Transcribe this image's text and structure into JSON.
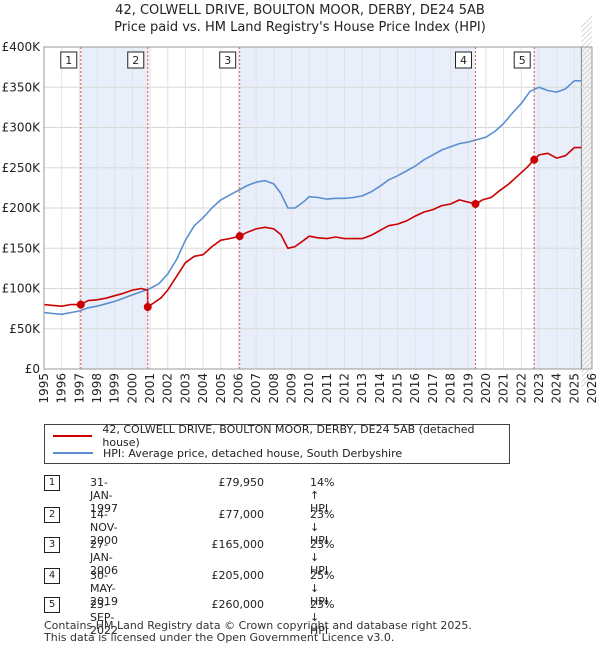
{
  "chart_data": {
    "type": "line",
    "title": "42, COLWELL DRIVE, BOULTON MOOR, DERBY, DE24 5AB",
    "subtitle": "Price paid vs. HM Land Registry's House Price Index (HPI)",
    "xlim": [
      1995,
      2026
    ],
    "ylim": [
      0,
      400000
    ],
    "x_ticks": [
      "1995",
      "1996",
      "1997",
      "1998",
      "1999",
      "2000",
      "2001",
      "2002",
      "2003",
      "2004",
      "2005",
      "2006",
      "2007",
      "2008",
      "2009",
      "2010",
      "2011",
      "2012",
      "2013",
      "2014",
      "2015",
      "2016",
      "2017",
      "2018",
      "2019",
      "2020",
      "2021",
      "2022",
      "2023",
      "2024",
      "2025",
      "2026"
    ],
    "y_ticks": [
      {
        "value": 0,
        "label": "£0"
      },
      {
        "value": 50000,
        "label": "£50K"
      },
      {
        "value": 100000,
        "label": "£100K"
      },
      {
        "value": 150000,
        "label": "£150K"
      },
      {
        "value": 200000,
        "label": "£200K"
      },
      {
        "value": 250000,
        "label": "£250K"
      },
      {
        "value": 300000,
        "label": "£300K"
      },
      {
        "value": 350000,
        "label": "£350K"
      },
      {
        "value": 400000,
        "label": "£400K"
      }
    ],
    "series": [
      {
        "name": "42, COLWELL DRIVE, BOULTON MOOR, DERBY, DE24 5AB (detached house)",
        "color": "#cc0000",
        "points": [
          [
            1995,
            80000
          ],
          [
            1995.5,
            79000
          ],
          [
            1996,
            78000
          ],
          [
            1996.5,
            80000
          ],
          [
            1997.08,
            79950
          ],
          [
            1997.5,
            85000
          ],
          [
            1998,
            86000
          ],
          [
            1998.5,
            88000
          ],
          [
            1999,
            91000
          ],
          [
            1999.5,
            94000
          ],
          [
            2000,
            98000
          ],
          [
            2000.5,
            100000
          ],
          [
            2000.86,
            98000
          ],
          [
            2000.87,
            77000
          ],
          [
            2001.2,
            82000
          ],
          [
            2001.6,
            88000
          ],
          [
            2002,
            98000
          ],
          [
            2002.5,
            115000
          ],
          [
            2003,
            132000
          ],
          [
            2003.5,
            140000
          ],
          [
            2004,
            142000
          ],
          [
            2004.5,
            152000
          ],
          [
            2005,
            160000
          ],
          [
            2005.5,
            162000
          ],
          [
            2006.07,
            165000
          ],
          [
            2006.5,
            170000
          ],
          [
            2007,
            174000
          ],
          [
            2007.5,
            176000
          ],
          [
            2008,
            174000
          ],
          [
            2008.4,
            167000
          ],
          [
            2008.8,
            150000
          ],
          [
            2009.2,
            152000
          ],
          [
            2009.7,
            160000
          ],
          [
            2010,
            165000
          ],
          [
            2010.5,
            163000
          ],
          [
            2011,
            162000
          ],
          [
            2011.5,
            164000
          ],
          [
            2012,
            162000
          ],
          [
            2012.5,
            162000
          ],
          [
            2013,
            162000
          ],
          [
            2013.5,
            166000
          ],
          [
            2014,
            172000
          ],
          [
            2014.5,
            178000
          ],
          [
            2015,
            180000
          ],
          [
            2015.5,
            184000
          ],
          [
            2016,
            190000
          ],
          [
            2016.5,
            195000
          ],
          [
            2017,
            198000
          ],
          [
            2017.5,
            203000
          ],
          [
            2018,
            205000
          ],
          [
            2018.5,
            210000
          ],
          [
            2019.41,
            205000
          ],
          [
            2019.8,
            210000
          ],
          [
            2020.3,
            213000
          ],
          [
            2020.8,
            222000
          ],
          [
            2021.3,
            230000
          ],
          [
            2021.8,
            240000
          ],
          [
            2022.3,
            250000
          ],
          [
            2022.73,
            260000
          ],
          [
            2023,
            266000
          ],
          [
            2023.5,
            268000
          ],
          [
            2024,
            262000
          ],
          [
            2024.5,
            265000
          ],
          [
            2025,
            275000
          ],
          [
            2025.4,
            275000
          ]
        ]
      },
      {
        "name": "HPI: Average price, detached house, South Derbyshire",
        "color": "#5b8fd0",
        "points": [
          [
            1995,
            70000
          ],
          [
            1995.5,
            69000
          ],
          [
            1996,
            68000
          ],
          [
            1996.5,
            70000
          ],
          [
            1997,
            72000
          ],
          [
            1997.5,
            76000
          ],
          [
            1998,
            78000
          ],
          [
            1998.5,
            81000
          ],
          [
            1999,
            84000
          ],
          [
            1999.5,
            88000
          ],
          [
            2000,
            92000
          ],
          [
            2000.5,
            96000
          ],
          [
            2001,
            100000
          ],
          [
            2001.5,
            106000
          ],
          [
            2002,
            118000
          ],
          [
            2002.5,
            136000
          ],
          [
            2003,
            160000
          ],
          [
            2003.5,
            178000
          ],
          [
            2004,
            188000
          ],
          [
            2004.5,
            200000
          ],
          [
            2005,
            210000
          ],
          [
            2005.5,
            216000
          ],
          [
            2006,
            222000
          ],
          [
            2006.5,
            228000
          ],
          [
            2007,
            232000
          ],
          [
            2007.5,
            234000
          ],
          [
            2008,
            230000
          ],
          [
            2008.4,
            218000
          ],
          [
            2008.8,
            200000
          ],
          [
            2009.2,
            200000
          ],
          [
            2009.7,
            208000
          ],
          [
            2010,
            214000
          ],
          [
            2010.5,
            213000
          ],
          [
            2011,
            211000
          ],
          [
            2011.5,
            212000
          ],
          [
            2012,
            212000
          ],
          [
            2012.5,
            213000
          ],
          [
            2013,
            215000
          ],
          [
            2013.5,
            220000
          ],
          [
            2014,
            227000
          ],
          [
            2014.5,
            235000
          ],
          [
            2015,
            240000
          ],
          [
            2015.5,
            246000
          ],
          [
            2016,
            252000
          ],
          [
            2016.5,
            260000
          ],
          [
            2017,
            266000
          ],
          [
            2017.5,
            272000
          ],
          [
            2018,
            276000
          ],
          [
            2018.5,
            280000
          ],
          [
            2019,
            282000
          ],
          [
            2019.5,
            285000
          ],
          [
            2020,
            288000
          ],
          [
            2020.5,
            295000
          ],
          [
            2021,
            305000
          ],
          [
            2021.5,
            318000
          ],
          [
            2022,
            330000
          ],
          [
            2022.5,
            345000
          ],
          [
            2023,
            350000
          ],
          [
            2023.5,
            346000
          ],
          [
            2024,
            344000
          ],
          [
            2024.5,
            348000
          ],
          [
            2025,
            358000
          ],
          [
            2025.4,
            358000
          ]
        ]
      }
    ],
    "transactions": [
      {
        "id": "1",
        "x": 1997.08,
        "y": 79950,
        "date": "31-JAN-1997",
        "price": "£79,950",
        "hpi": "14% ↑ HPI"
      },
      {
        "id": "2",
        "x": 2000.87,
        "y": 77000,
        "date": "14-NOV-2000",
        "price": "£77,000",
        "hpi": "23% ↓ HPI"
      },
      {
        "id": "3",
        "x": 2006.07,
        "y": 165000,
        "date": "27-JAN-2006",
        "price": "£165,000",
        "hpi": "23% ↓ HPI"
      },
      {
        "id": "4",
        "x": 2019.41,
        "y": 205000,
        "date": "30-MAY-2019",
        "price": "£205,000",
        "hpi": "25% ↓ HPI"
      },
      {
        "id": "5",
        "x": 2022.73,
        "y": 260000,
        "date": "23-SEP-2022",
        "price": "£260,000",
        "hpi": "23% ↓ HPI"
      }
    ],
    "shaded_periods": [
      [
        1997.08,
        2000.87
      ],
      [
        2006.07,
        2019.41
      ],
      [
        2022.73,
        2025.4
      ]
    ],
    "future_start": 2025.4,
    "grid": true
  },
  "footer": {
    "line1": "Contains HM Land Registry data © Crown copyright and database right 2025.",
    "line2": "This data is licensed under the Open Government Licence v3.0."
  }
}
